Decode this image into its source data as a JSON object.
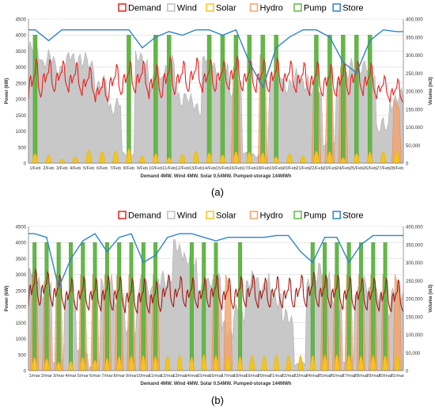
{
  "legend_items": [
    {
      "name": "Demand",
      "color": "#e8201e"
    },
    {
      "name": "Wind",
      "color": "#bfbfbf"
    },
    {
      "name": "Solar",
      "color": "#f5c518"
    },
    {
      "name": "Hydro",
      "color": "#f4a26a"
    },
    {
      "name": "Pump",
      "color": "#62b845"
    },
    {
      "name": "Store",
      "color": "#2f84c7"
    }
  ],
  "chart_data": [
    {
      "type": "area",
      "panel_label": "(a)",
      "xlabel": "Demand 4MW. Wind 4MW. Solar 0.54MW. Pumped-storage 144MWh",
      "ylabel": "Power (kW)",
      "ylabel_right": "Volume (m3)",
      "ylim": [
        0,
        4500
      ],
      "ylim_right": [
        0,
        400000
      ],
      "yticks": [
        "0",
        "500",
        "1000",
        "1500",
        "2000",
        "2500",
        "3000",
        "3500",
        "4000",
        "4500"
      ],
      "yticks_right": [
        "0",
        "50,000",
        "100,000",
        "150,000",
        "200,000",
        "250,000",
        "300,000",
        "350,000",
        "400,000"
      ],
      "x_categories": [
        "1/Feb",
        "2/Feb",
        "3/Feb",
        "4/Feb",
        "5/Feb",
        "6/Feb",
        "7/Feb",
        "8/Feb",
        "9/Feb",
        "10/Feb",
        "11/Feb",
        "12/Feb",
        "13/Feb",
        "14/Feb",
        "15/Feb",
        "16/Feb",
        "17/Feb",
        "18/Feb",
        "19/Feb",
        "20/Feb",
        "21/Feb",
        "22/Feb",
        "23/Feb",
        "24/Feb",
        "25/Feb",
        "26/Feb",
        "27/Feb",
        "28/Feb"
      ],
      "grid": true,
      "legend_position": "top",
      "series": [
        {
          "name": "Demand",
          "kind": "line",
          "axis": "left",
          "color": "#e8201e",
          "daily_peak_kw": [
            3400,
            3350,
            3300,
            3250,
            3100,
            2750,
            3200,
            3300,
            3300,
            3200,
            3450,
            3300,
            3400,
            3350,
            3300,
            3450,
            3300,
            3350,
            3400,
            3300,
            3250,
            3300,
            3200,
            3250,
            3300,
            3250,
            2800,
            2700
          ],
          "daily_trough_kw": [
            2000,
            2200,
            2300,
            2200,
            2100,
            1900,
            2100,
            2200,
            2200,
            2000,
            2100,
            2200,
            2300,
            2200,
            2300,
            2300,
            2250,
            2200,
            2250,
            2250,
            2200,
            2100,
            2100,
            2100,
            2200,
            2100,
            2000,
            1900
          ]
        },
        {
          "name": "Wind",
          "kind": "area",
          "axis": "left",
          "color": "#bfbfbf",
          "daily_avg_kw": [
            3500,
            3200,
            3000,
            3300,
            3100,
            2400,
            1800,
            300,
            3200,
            2500,
            3000,
            2100,
            1800,
            3200,
            2800,
            2300,
            300,
            200,
            2700,
            2500,
            2600,
            2200,
            600,
            2600,
            3000,
            2900,
            1100,
            2000
          ]
        },
        {
          "name": "Solar",
          "kind": "area",
          "axis": "left",
          "color": "#f5c518",
          "daily_peak_kw": [
            300,
            260,
            120,
            200,
            420,
            380,
            380,
            460,
            230,
            300,
            180,
            280,
            380,
            330,
            270,
            360,
            350,
            320,
            200,
            300,
            230,
            380,
            370,
            170,
            310,
            350,
            360,
            380
          ]
        },
        {
          "name": "Hydro",
          "kind": "area",
          "axis": "left",
          "color": "#f4a26a",
          "daily_peak_kw": [
            0,
            0,
            0,
            0,
            0,
            0,
            0,
            0,
            0,
            0,
            0,
            0,
            0,
            0,
            0,
            3000,
            0,
            3400,
            0,
            0,
            0,
            2600,
            2700,
            3000,
            0,
            0,
            0,
            2000
          ]
        },
        {
          "name": "Pump",
          "kind": "bar",
          "axis": "left",
          "color": "#62b845",
          "daily_peak_kw": [
            4000,
            0,
            0,
            0,
            0,
            0,
            0,
            4000,
            0,
            4000,
            4000,
            0,
            0,
            4000,
            4000,
            4000,
            4000,
            4000,
            4000,
            0,
            0,
            4000,
            4000,
            4000,
            4000,
            4000,
            0,
            0
          ]
        },
        {
          "name": "Store",
          "kind": "line",
          "axis": "right",
          "color": "#2f84c7",
          "daily_volume_m3": [
            370000,
            340000,
            370000,
            370000,
            370000,
            370000,
            370000,
            370000,
            320000,
            350000,
            365000,
            355000,
            370000,
            370000,
            355000,
            370000,
            280000,
            210000,
            320000,
            350000,
            370000,
            370000,
            350000,
            280000,
            250000,
            340000,
            370000,
            365000
          ]
        }
      ]
    },
    {
      "type": "area",
      "panel_label": "(b)",
      "xlabel": "Demand 4MW. Wind 4MW. Solar 0.54MW. Pumped-storage 144MWh",
      "ylabel": "Power (kW)",
      "ylabel_right": "Volume (m3)",
      "ylim": [
        0,
        4500
      ],
      "ylim_right": [
        0,
        400000
      ],
      "yticks": [
        "0",
        "500",
        "1000",
        "1500",
        "2000",
        "2500",
        "3000",
        "3500",
        "4000",
        "4500"
      ],
      "yticks_right": [
        "0",
        "50,000",
        "100,000",
        "150,000",
        "200,000",
        "250,000",
        "300,000",
        "350,000",
        "400,000"
      ],
      "x_categories": [
        "1/mar",
        "2/mar",
        "3/mar",
        "4/mar",
        "5/mar",
        "6/mar",
        "7/mar",
        "8/mar",
        "9/mar",
        "10/mar",
        "11/mar",
        "12/mar",
        "13/mar",
        "14/mar",
        "15/mar",
        "16/mar",
        "17/mar",
        "18/mar",
        "19/mar",
        "20/mar",
        "21/mar",
        "22/mar",
        "23/mar",
        "24/mar",
        "25/mar",
        "26/mar",
        "27/mar",
        "28/mar",
        "29/mar",
        "30/mar",
        "31/mar"
      ],
      "grid": true,
      "legend_position": "top",
      "series": [
        {
          "name": "Demand",
          "kind": "line",
          "axis": "left",
          "color": "#a11d14",
          "daily_peak_kw": [
            3300,
            3200,
            3100,
            3000,
            3050,
            3000,
            3100,
            3050,
            3000,
            3000,
            2900,
            3100,
            3050,
            3000,
            3000,
            3100,
            3000,
            3050,
            3100,
            3000,
            3050,
            3000,
            3100,
            3200,
            3100,
            3100,
            3050,
            3000,
            3000,
            3000,
            2950
          ],
          "daily_trough_kw": [
            2000,
            2100,
            2000,
            1900,
            1900,
            1900,
            1850,
            1900,
            1800,
            1800,
            1800,
            2000,
            2000,
            2000,
            1950,
            2000,
            1900,
            2000,
            2000,
            1950,
            2000,
            1950,
            2000,
            2000,
            2000,
            1950,
            1900,
            1900,
            1900,
            1850,
            1850
          ]
        },
        {
          "name": "Wind",
          "kind": "area",
          "axis": "left",
          "color": "#bfbfbf",
          "daily_avg_kw": [
            3000,
            2500,
            300,
            2200,
            600,
            100,
            2800,
            2200,
            1200,
            2600,
            2600,
            2900,
            3800,
            3400,
            2600,
            2800,
            1300,
            1800,
            2800,
            2700,
            2300,
            1600,
            200,
            2800,
            3100,
            2100,
            300,
            2600,
            2500,
            2000,
            2400
          ]
        },
        {
          "name": "Solar",
          "kind": "area",
          "axis": "left",
          "color": "#f5c518",
          "daily_peak_kw": [
            420,
            380,
            270,
            300,
            420,
            330,
            390,
            450,
            460,
            480,
            450,
            450,
            480,
            420,
            510,
            470,
            460,
            440,
            480,
            460,
            490,
            460,
            470,
            480,
            490,
            500,
            490,
            460,
            480,
            470,
            490
          ]
        },
        {
          "name": "Hydro",
          "kind": "area",
          "axis": "left",
          "color": "#f4a26a",
          "daily_peak_kw": [
            3000,
            2800,
            3000,
            0,
            3000,
            3000,
            3000,
            3000,
            3000,
            3000,
            3000,
            0,
            0,
            0,
            0,
            3000,
            3000,
            0,
            0,
            0,
            0,
            0,
            0,
            0,
            3000,
            3000,
            3000,
            3000,
            3000,
            3000,
            3000
          ]
        },
        {
          "name": "Pump",
          "kind": "bar",
          "axis": "left",
          "color": "#62b845",
          "daily_peak_kw": [
            4000,
            4000,
            4000,
            4000,
            4000,
            4000,
            4000,
            4000,
            4000,
            4000,
            4000,
            0,
            0,
            4000,
            4000,
            4000,
            0,
            4000,
            0,
            0,
            0,
            0,
            0,
            4000,
            4000,
            4000,
            4000,
            4000,
            4000,
            4000,
            0
          ]
        },
        {
          "name": "Store",
          "kind": "line",
          "axis": "right",
          "color": "#2f84c7",
          "daily_volume_m3": [
            380000,
            370000,
            230000,
            310000,
            360000,
            380000,
            330000,
            370000,
            380000,
            300000,
            320000,
            370000,
            380000,
            380000,
            370000,
            360000,
            370000,
            370000,
            370000,
            370000,
            375000,
            375000,
            330000,
            300000,
            370000,
            370000,
            300000,
            350000,
            375000,
            375000,
            375000
          ]
        }
      ]
    }
  ]
}
